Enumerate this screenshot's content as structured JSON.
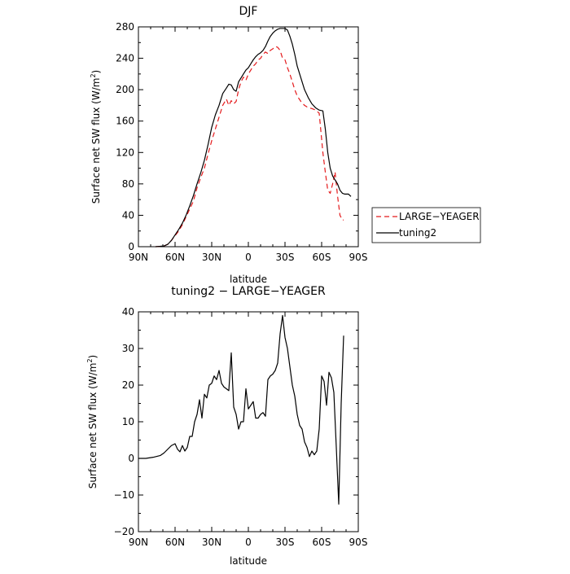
{
  "chart_data": [
    {
      "type": "line",
      "title": "DJF",
      "xlabel": "latitude",
      "ylabel": "Surface net SW flux (W/m²)",
      "xlim": [
        90,
        -90
      ],
      "ylim": [
        0,
        280
      ],
      "xticks": [
        90,
        60,
        30,
        0,
        -30,
        -60,
        -90
      ],
      "xtick_labels": [
        "90N",
        "60N",
        "30N",
        "0",
        "30S",
        "60S",
        "90S"
      ],
      "yticks": [
        0,
        40,
        80,
        120,
        160,
        200,
        240,
        280
      ],
      "ytick_labels": [
        "0",
        "40",
        "80",
        "120",
        "160",
        "200",
        "240",
        "280"
      ],
      "legend": {
        "placement": "outside-right"
      },
      "grid": false,
      "series": [
        {
          "name": "LARGE-YEAGER",
          "color": "#e41a1c",
          "dash": "dashed",
          "x": [
            76,
            72,
            69,
            66,
            63,
            60,
            57,
            54,
            51,
            48,
            45,
            42,
            39,
            36,
            33,
            30,
            27,
            24,
            21,
            18,
            16,
            14,
            12,
            10,
            8,
            6,
            4,
            2,
            0,
            -2,
            -4,
            -6,
            -8,
            -10,
            -12,
            -14,
            -16,
            -18,
            -20,
            -22,
            -24,
            -26,
            -28,
            -30,
            -32,
            -34,
            -36,
            -38,
            -40,
            -43,
            -46,
            -49,
            -52,
            -55,
            -58,
            -61,
            -63,
            -65,
            -67,
            -69,
            -71,
            -73,
            -75,
            -77,
            -78
          ],
          "y": [
            0,
            0.5,
            1,
            3,
            8,
            14,
            20,
            28,
            38,
            48,
            58,
            75,
            88,
            100,
            118,
            135,
            150,
            165,
            180,
            188,
            180,
            186,
            182,
            185,
            200,
            210,
            216,
            212,
            220,
            225,
            230,
            233,
            238,
            240,
            245,
            248,
            246,
            250,
            252,
            255,
            254,
            250,
            240,
            238,
            228,
            220,
            210,
            200,
            192,
            185,
            180,
            177,
            176,
            174,
            170,
            120,
            95,
            72,
            68,
            80,
            95,
            65,
            40,
            34,
            34
          ]
        },
        {
          "name": "tuning2",
          "color": "#000000",
          "dash": "solid",
          "x": [
            76,
            72,
            69,
            66,
            63,
            60,
            57,
            54,
            51,
            48,
            45,
            42,
            39,
            36,
            33,
            30,
            27,
            24,
            21,
            18,
            16,
            14,
            12,
            10,
            8,
            6,
            4,
            2,
            0,
            -2,
            -4,
            -6,
            -8,
            -10,
            -12,
            -14,
            -16,
            -18,
            -20,
            -22,
            -24,
            -26,
            -28,
            -30,
            -32,
            -34,
            -36,
            -38,
            -40,
            -43,
            -46,
            -49,
            -52,
            -55,
            -58,
            -61,
            -63,
            -65,
            -67,
            -69,
            -71,
            -73,
            -75,
            -77,
            -79,
            -82,
            -84
          ],
          "y": [
            0,
            0.5,
            1,
            3,
            8,
            15,
            22,
            30,
            40,
            52,
            65,
            80,
            94,
            110,
            130,
            152,
            168,
            180,
            195,
            202,
            207,
            206,
            200,
            198,
            210,
            215,
            220,
            225,
            228,
            233,
            238,
            242,
            245,
            247,
            250,
            255,
            262,
            268,
            272,
            275,
            277,
            278,
            278,
            278,
            276,
            268,
            258,
            245,
            230,
            215,
            200,
            190,
            182,
            177,
            174,
            173,
            150,
            120,
            100,
            90,
            85,
            80,
            72,
            68,
            67,
            67,
            64
          ]
        }
      ]
    },
    {
      "type": "line",
      "title": "tuning2 − LARGE−YEAGER",
      "xlabel": "latitude",
      "ylabel": "Surface net SW flux (W/m²)",
      "xlim": [
        90,
        -90
      ],
      "ylim": [
        -20,
        40
      ],
      "xticks": [
        90,
        60,
        30,
        0,
        -30,
        -60,
        -90
      ],
      "xtick_labels": [
        "90N",
        "60N",
        "30N",
        "0",
        "30S",
        "60S",
        "90S"
      ],
      "yticks": [
        -20,
        -10,
        0,
        10,
        20,
        30,
        40
      ],
      "ytick_labels": [
        "−20",
        "−10",
        "0",
        "10",
        "20",
        "30",
        "40"
      ],
      "grid": false,
      "series": [
        {
          "color": "#000000",
          "dash": "solid",
          "x": [
            90,
            84,
            78,
            72,
            69,
            66,
            63,
            60,
            58,
            56,
            54,
            52,
            50,
            48,
            46,
            44,
            42,
            40,
            38,
            36,
            34,
            32,
            30,
            28,
            26,
            24,
            22,
            20,
            18,
            16,
            14,
            12,
            10,
            8,
            6,
            4,
            2,
            0,
            -2,
            -4,
            -6,
            -8,
            -10,
            -12,
            -14,
            -16,
            -18,
            -20,
            -22,
            -24,
            -26,
            -28,
            -30,
            -32,
            -34,
            -36,
            -38,
            -40,
            -42,
            -44,
            -46,
            -48,
            -50,
            -52,
            -54,
            -56,
            -58,
            -60,
            -62,
            -64,
            -66,
            -68,
            -70,
            -72,
            -74,
            -76,
            -78
          ],
          "y": [
            0,
            0,
            0.3,
            0.8,
            1.5,
            2.5,
            3.5,
            4,
            2.5,
            1.8,
            3.5,
            2,
            3,
            6,
            6,
            10,
            12,
            16,
            11,
            17.5,
            16.5,
            20,
            20.5,
            22.5,
            21.5,
            24,
            20.5,
            19.5,
            19,
            18.5,
            28.8,
            14,
            12,
            8,
            10,
            10,
            19,
            13.5,
            14.5,
            15.5,
            11,
            11,
            12,
            12.5,
            11.5,
            21.5,
            22.5,
            23,
            24,
            26,
            34,
            39,
            33,
            30,
            25,
            20,
            17,
            12,
            9,
            8,
            4.5,
            3,
            0.5,
            2,
            1,
            2,
            8,
            22.5,
            21,
            14.5,
            23.5,
            22,
            18,
            3,
            -12.5,
            15,
            33.5
          ]
        }
      ]
    }
  ],
  "legend": {
    "entries": [
      "LARGE−YEAGER",
      "tuning2"
    ]
  },
  "panels": [
    {
      "title": "DJF",
      "xlabel": "latitude",
      "ylabel_main": "Surface net SW flux (W/m",
      "ylabel_sup": "2",
      "ylabel_end": ")"
    },
    {
      "title": "tuning2 − LARGE−YEAGER",
      "xlabel": "latitude",
      "ylabel_main": "Surface net SW flux (W/m",
      "ylabel_sup": "2",
      "ylabel_end": ")"
    }
  ]
}
